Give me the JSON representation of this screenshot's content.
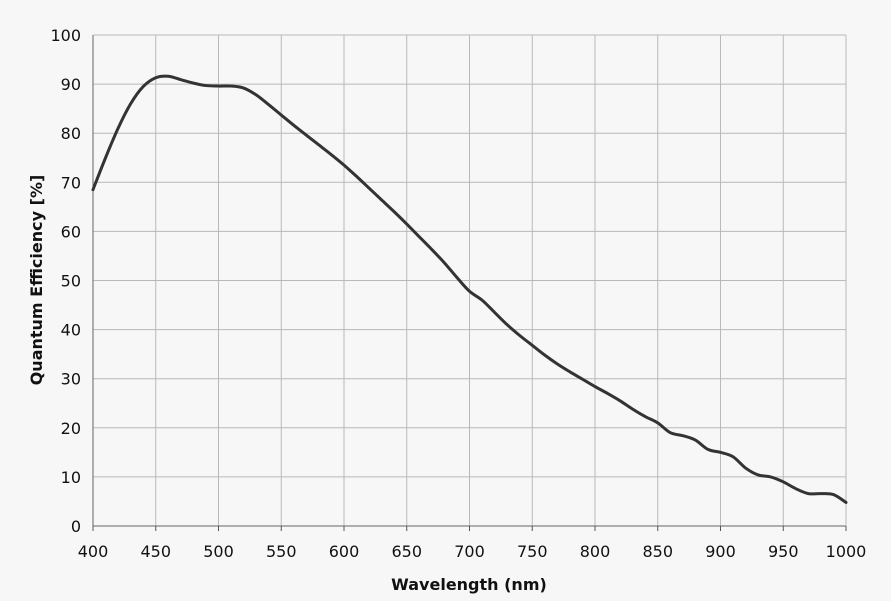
{
  "chart_data": {
    "type": "line",
    "xlabel": "Wavelength (nm)",
    "ylabel": "Quantum Efficiency [%]",
    "xlim": [
      400,
      1000
    ],
    "ylim": [
      0,
      100
    ],
    "x_ticks": [
      400,
      450,
      500,
      550,
      600,
      650,
      700,
      750,
      800,
      850,
      900,
      950,
      1000
    ],
    "y_ticks": [
      0,
      10,
      20,
      30,
      40,
      50,
      60,
      70,
      80,
      90,
      100
    ],
    "grid": true,
    "series": [
      {
        "color": "#333333",
        "x": [
          400,
          410,
          420,
          430,
          440,
          450,
          460,
          470,
          480,
          490,
          500,
          510,
          520,
          530,
          540,
          550,
          560,
          570,
          580,
          590,
          600,
          610,
          620,
          630,
          640,
          650,
          660,
          670,
          680,
          690,
          700,
          710,
          720,
          730,
          740,
          750,
          760,
          770,
          780,
          790,
          800,
          810,
          820,
          830,
          840,
          850,
          860,
          870,
          880,
          890,
          900,
          910,
          920,
          930,
          940,
          950,
          960,
          970,
          980,
          990,
          1000
        ],
        "y": [
          68.5,
          75,
          81,
          86,
          89.5,
          91.3,
          91.6,
          90.9,
          90.2,
          89.7,
          89.6,
          89.6,
          89.2,
          87.8,
          85.8,
          83.7,
          81.6,
          79.6,
          77.6,
          75.6,
          73.5,
          71.2,
          68.8,
          66.4,
          64,
          61.5,
          58.9,
          56.3,
          53.6,
          50.6,
          47.8,
          46,
          43.5,
          41,
          38.8,
          36.8,
          34.8,
          33,
          31.4,
          29.9,
          28.4,
          27,
          25.5,
          23.8,
          22.3,
          21,
          19,
          18.4,
          17.5,
          15.6,
          15,
          14.1,
          11.8,
          10.4,
          10,
          9,
          7.6,
          6.6,
          6.6,
          6.4,
          4.8
        ]
      }
    ]
  }
}
